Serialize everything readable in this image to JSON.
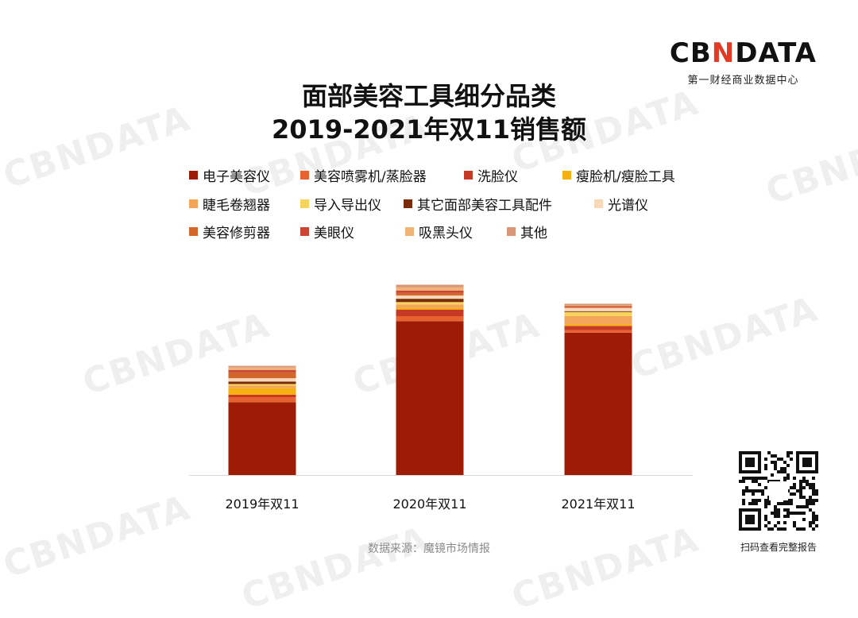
{
  "brand": {
    "logo_pre": "CB",
    "logo_accent": "N",
    "logo_post": "DATA",
    "subtitle": "第一财经商业数据中心"
  },
  "title_line1": "面部美容工具细分品类",
  "title_line2": "2019-2021年双11销售额",
  "source": "数据来源：魔镜市场情报",
  "qr_label": "扫码查看完整报告",
  "chart_data": {
    "type": "bar",
    "stacked": true,
    "categories": [
      "2019年双11",
      "2020年双11",
      "2021年双11"
    ],
    "ylim": [
      0,
      240
    ],
    "grid": false,
    "legend_position": "top",
    "series": [
      {
        "name": "电子美容仪",
        "color": "#9e1c06",
        "values": [
          88,
          186,
          172
        ]
      },
      {
        "name": "美容喷雾机/蒸脸器",
        "color": "#e8622f",
        "values": [
          6,
          6,
          3
        ]
      },
      {
        "name": "洗脸仪",
        "color": "#c63a25",
        "values": [
          3,
          8,
          5
        ]
      },
      {
        "name": "瘦脸机/瘦脸工具",
        "color": "#f6b111",
        "values": [
          8,
          2,
          2
        ]
      },
      {
        "name": "睫毛卷翘器",
        "color": "#f3a55a",
        "values": [
          3,
          4,
          10
        ]
      },
      {
        "name": "导入导出仪",
        "color": "#f6d35a",
        "values": [
          2,
          3,
          5
        ]
      },
      {
        "name": "其它面部美容工具配件",
        "color": "#7a2c0a",
        "values": [
          3,
          4,
          1
        ]
      },
      {
        "name": "光谱仪",
        "color": "#f7d8b8",
        "values": [
          4,
          4,
          4
        ]
      },
      {
        "name": "美容修剪器",
        "color": "#d2662b",
        "values": [
          7,
          3,
          1
        ]
      },
      {
        "name": "美眼仪",
        "color": "#cc4433",
        "values": [
          3,
          3,
          1
        ]
      },
      {
        "name": "吸黑头仪",
        "color": "#f1b478",
        "values": [
          3,
          4,
          1
        ]
      },
      {
        "name": "其他",
        "color": "#d9977a",
        "values": [
          2,
          3,
          2
        ]
      }
    ]
  }
}
